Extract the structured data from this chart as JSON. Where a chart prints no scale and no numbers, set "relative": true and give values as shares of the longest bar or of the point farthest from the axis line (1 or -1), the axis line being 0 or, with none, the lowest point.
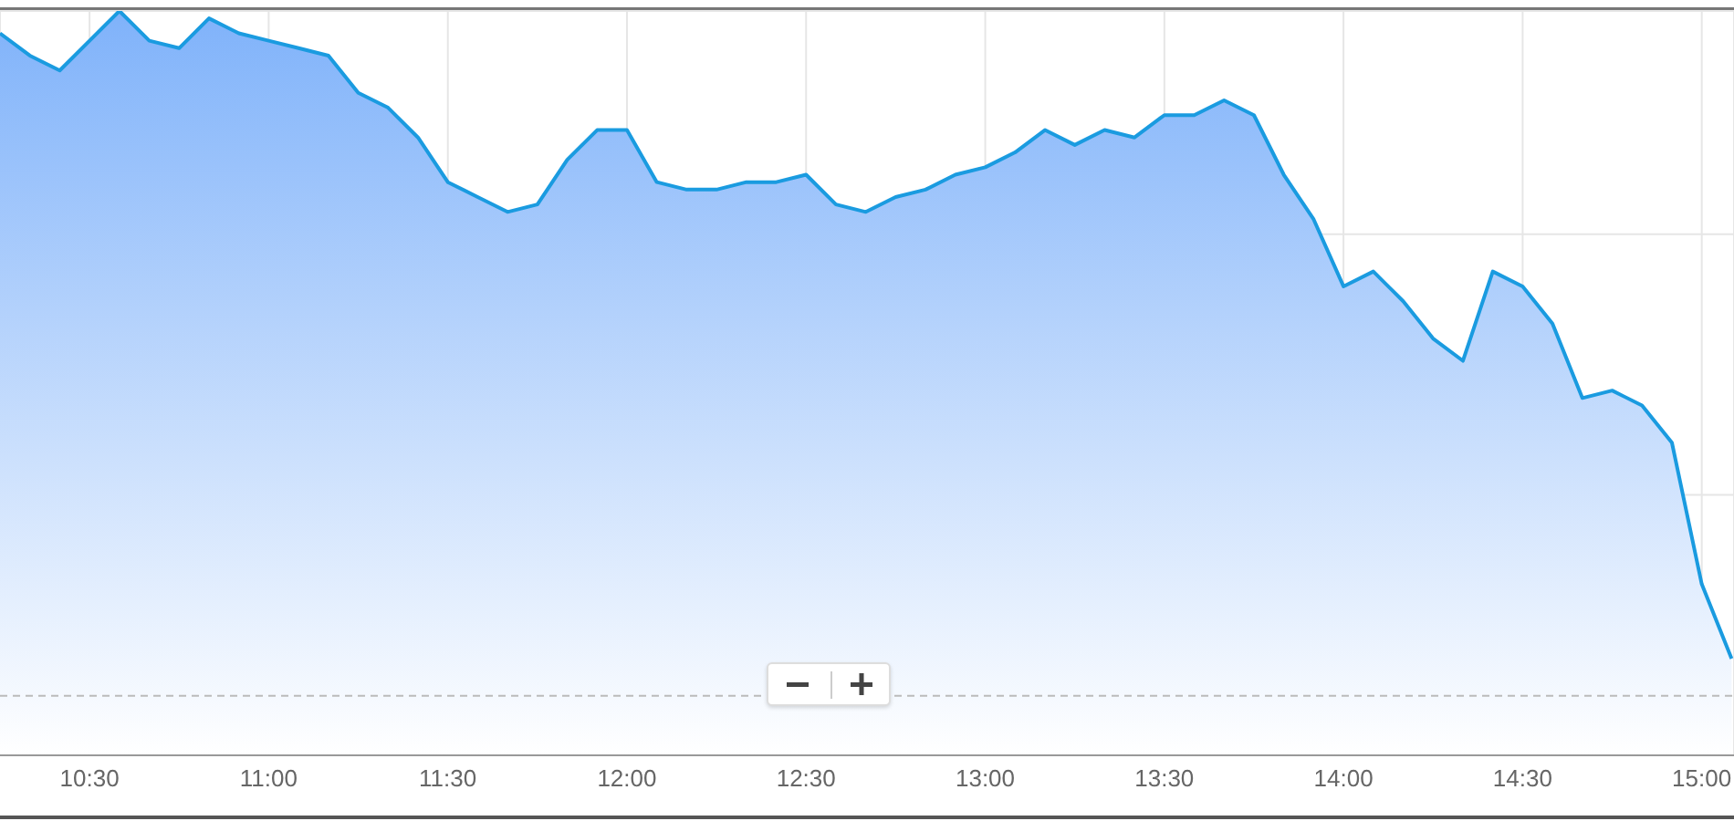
{
  "chart_data": {
    "type": "area",
    "relative": true,
    "grid": true,
    "legend": false,
    "marker": "none",
    "line_style": "solid",
    "x": [
      10.25,
      10.3333,
      10.4167,
      10.5,
      10.5833,
      10.6667,
      10.75,
      10.8333,
      10.9167,
      11,
      11.0833,
      11.1667,
      11.25,
      11.3333,
      11.4167,
      11.5,
      11.5833,
      11.6667,
      11.75,
      11.8333,
      11.9167,
      12,
      12.0833,
      12.1667,
      12.25,
      12.3333,
      12.4167,
      12.5,
      12.5833,
      12.6667,
      12.75,
      12.8333,
      12.9167,
      13,
      13.0833,
      13.1667,
      13.25,
      13.3333,
      13.4167,
      13.5,
      13.5833,
      13.6667,
      13.75,
      13.8333,
      13.9167,
      14,
      14.0833,
      14.1667,
      14.25,
      14.3333,
      14.4167,
      14.5,
      14.5833,
      14.6667,
      14.75,
      14.8333,
      14.9167,
      15,
      15.0833
    ],
    "series": [
      {
        "color": "#1a9be0",
        "values": [
          0.97,
          0.94,
          0.92,
          0.96,
          1,
          0.96,
          0.95,
          0.99,
          0.97,
          0.96,
          0.95,
          0.94,
          0.89,
          0.87,
          0.83,
          0.77,
          0.75,
          0.73,
          0.74,
          0.8,
          0.84,
          0.84,
          0.77,
          0.76,
          0.76,
          0.77,
          0.77,
          0.78,
          0.74,
          0.73,
          0.75,
          0.76,
          0.78,
          0.79,
          0.81,
          0.84,
          0.82,
          0.84,
          0.83,
          0.86,
          0.86,
          0.88,
          0.86,
          0.78,
          0.72,
          0.63,
          0.65,
          0.61,
          0.56,
          0.53,
          0.65,
          0.63,
          0.58,
          0.48,
          0.49,
          0.47,
          0.42,
          0.23,
          0.13
        ]
      }
    ],
    "xlim": [
      10.25,
      15.09
    ],
    "xticks": [
      {
        "value": 10.5,
        "label": "10:30"
      },
      {
        "value": 11,
        "label": "11:00"
      },
      {
        "value": 11.5,
        "label": "11:30"
      },
      {
        "value": 12,
        "label": "12:00"
      },
      {
        "value": 12.5,
        "label": "12:30"
      },
      {
        "value": 13,
        "label": "13:00"
      },
      {
        "value": 13.5,
        "label": "13:30"
      },
      {
        "value": 14,
        "label": "14:00"
      },
      {
        "value": 14.5,
        "label": "14:30"
      },
      {
        "value": 15,
        "label": "15:00"
      }
    ],
    "ref_lines": [
      {
        "axis": "y",
        "value": 0.08,
        "label": null,
        "color": "#bbbbbb",
        "line_style": "dashed"
      }
    ]
  }
}
